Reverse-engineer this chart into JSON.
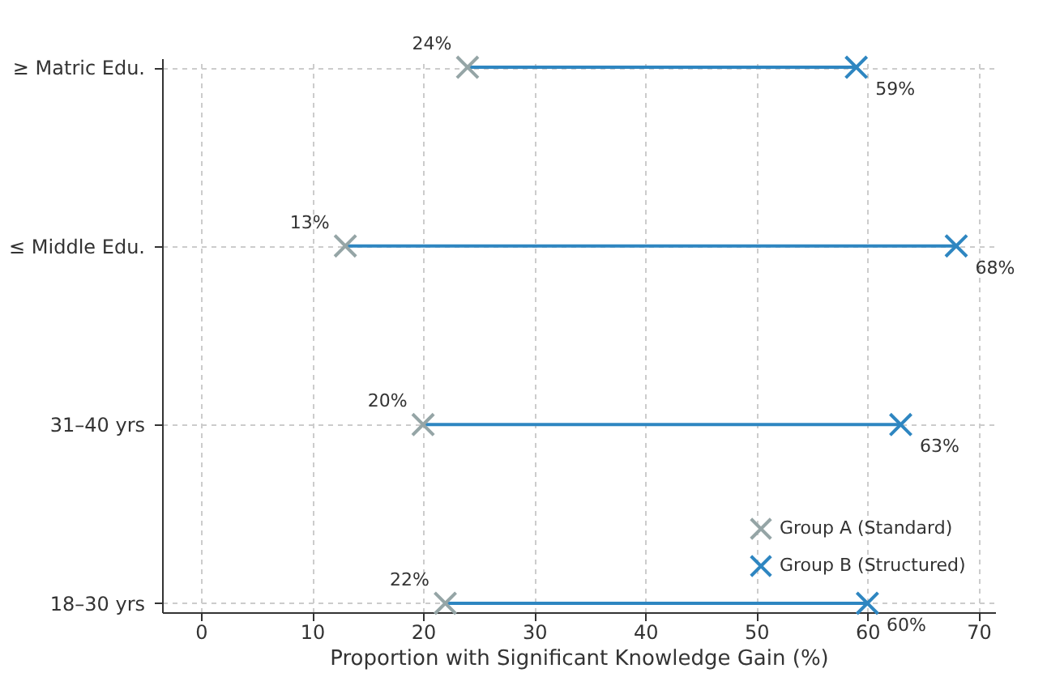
{
  "chart_data": {
    "type": "scatter",
    "orientation": "horizontal",
    "xlabel": "Proportion with Significant Knowledge Gain (%)",
    "categories": [
      "≥ Matric Edu.",
      "≤ Middle Edu.",
      "31–40 yrs",
      "18–30 yrs"
    ],
    "series": [
      {
        "name": "Group A (Standard)",
        "color": "#95a5a6",
        "values": [
          24,
          13,
          20,
          22
        ],
        "value_labels": [
          "24%",
          "13%",
          "20%",
          "22%"
        ]
      },
      {
        "name": "Group B (Structured)",
        "color": "#2e86c1",
        "values": [
          59,
          68,
          63,
          60
        ],
        "value_labels": [
          "59%",
          "68%",
          "63%",
          "60%"
        ]
      }
    ],
    "xlim": [
      -3.5,
      71.5
    ],
    "xticks": [
      0,
      10,
      20,
      30,
      40,
      50,
      60,
      70
    ],
    "grid": true,
    "legend": "bottom right",
    "marker": "cross"
  }
}
